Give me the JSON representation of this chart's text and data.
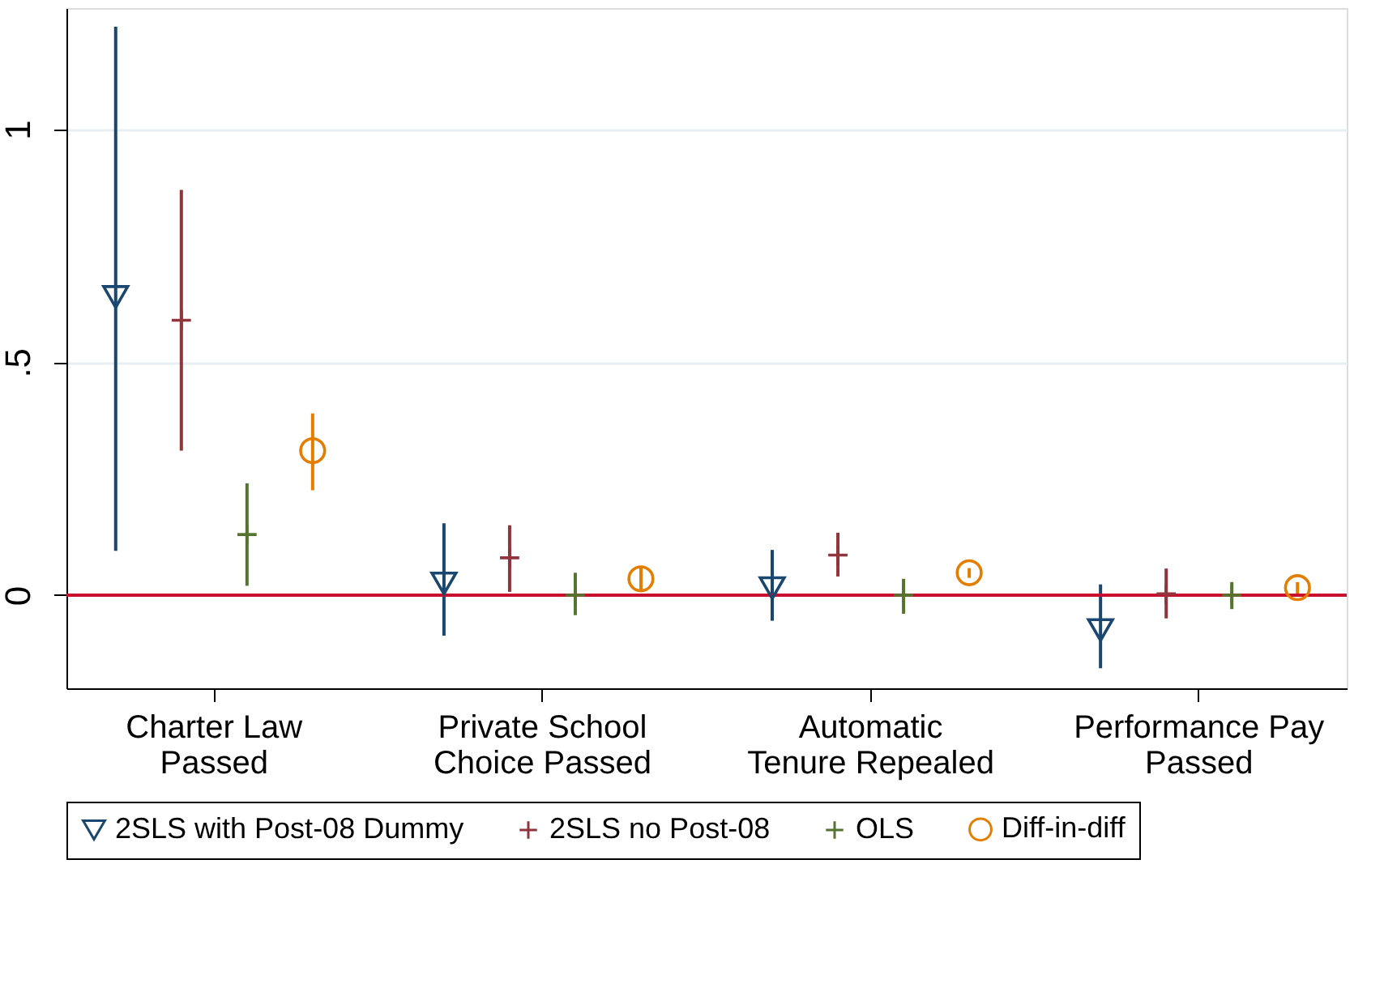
{
  "chart_data": {
    "type": "scatter",
    "categories": [
      "Charter Law\nPassed",
      "Private School\nChoice Passed",
      "Automatic\nTenure Repealed",
      "Performance Pay\nPassed"
    ],
    "series": [
      {
        "name": "2SLS with Post-08 Dummy",
        "color": "#1a476f",
        "marker": "triangle",
        "values": [
          0.64,
          0.025,
          0.015,
          -0.075
        ],
        "errors": [
          [
            0.095,
            1.22
          ],
          [
            -0.087,
            0.154
          ],
          [
            -0.055,
            0.097
          ],
          [
            -0.157,
            0.023
          ]
        ]
      },
      {
        "name": "2SLS no Post-08",
        "color": "#90353b",
        "marker": "cross",
        "values": [
          0.59,
          0.08,
          0.086,
          0.003
        ],
        "errors": [
          [
            0.31,
            0.87
          ],
          [
            0.007,
            0.15
          ],
          [
            0.04,
            0.134
          ],
          [
            -0.05,
            0.057
          ]
        ]
      },
      {
        "name": "OLS",
        "color": "#55752f",
        "marker": "cross",
        "values": [
          0.13,
          0.0,
          0.0,
          0.0
        ],
        "errors": [
          [
            0.02,
            0.24
          ],
          [
            -0.043,
            0.048
          ],
          [
            -0.04,
            0.035
          ],
          [
            -0.03,
            0.028
          ]
        ]
      },
      {
        "name": "Diff-in-diff",
        "color": "#e37e00",
        "marker": "circle",
        "values": [
          0.31,
          0.035,
          0.048,
          0.016
        ],
        "errors": [
          [
            0.225,
            0.39
          ],
          [
            0.008,
            0.06
          ],
          [
            0.037,
            0.058
          ],
          [
            0.0,
            0.028
          ]
        ]
      }
    ],
    "ylim": [
      -0.2,
      1.26
    ],
    "yticks": [
      0,
      {
        "value": 0.5,
        "label": ".5"
      },
      1
    ],
    "grid": "y",
    "legend": "bottom",
    "ref_lines": [
      {
        "axis": "y",
        "value": 0,
        "color": "#c8102e"
      }
    ]
  }
}
